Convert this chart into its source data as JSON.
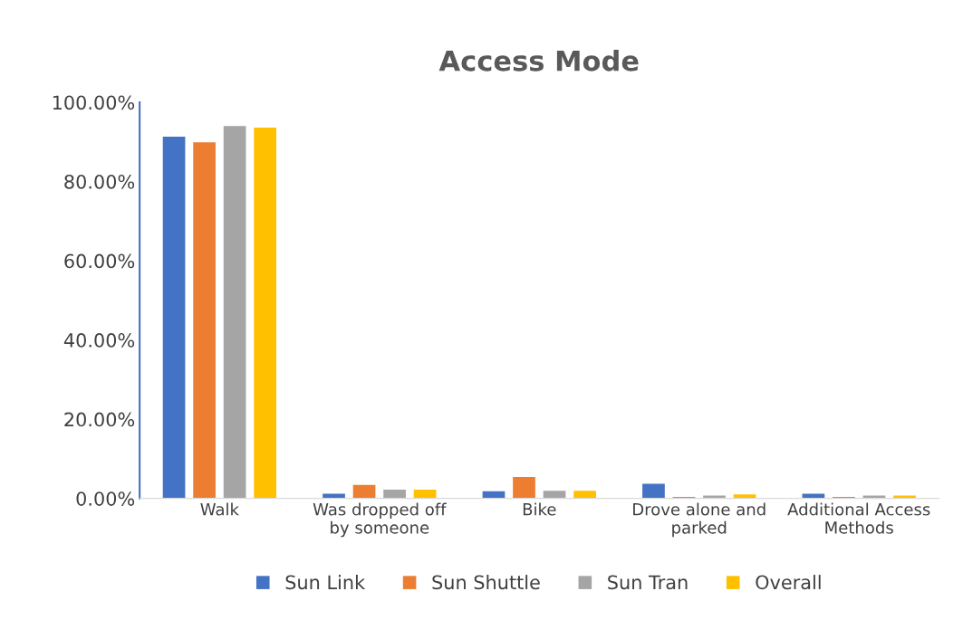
{
  "chart_data": {
    "type": "bar",
    "title": "Access Mode",
    "categories": [
      "Walk",
      "Was dropped off\nby someone",
      "Bike",
      "Drove alone and\nparked",
      "Additional Access\nMethods"
    ],
    "series": [
      {
        "name": "Sun Link",
        "color": "#4472c4",
        "values": [
          91.3,
          1.2,
          1.8,
          3.7,
          1.2
        ]
      },
      {
        "name": "Sun Shuttle",
        "color": "#ed7d31",
        "values": [
          89.9,
          3.4,
          5.4,
          0.4,
          0.4
        ]
      },
      {
        "name": "Sun Tran",
        "color": "#a5a5a5",
        "values": [
          94.0,
          2.2,
          1.9,
          0.7,
          0.7
        ]
      },
      {
        "name": "Overall",
        "color": "#ffc000",
        "values": [
          93.6,
          2.2,
          1.9,
          1.0,
          0.7
        ]
      }
    ],
    "ylim": [
      0,
      100
    ],
    "yticks": [
      {
        "value": 0,
        "label": "0.00%"
      },
      {
        "value": 20,
        "label": "20.00%"
      },
      {
        "value": 40,
        "label": "40.00%"
      },
      {
        "value": 60,
        "label": "60.00%"
      },
      {
        "value": 80,
        "label": "80.00%"
      },
      {
        "value": 100,
        "label": "100.00%"
      }
    ],
    "grid": false,
    "legend": "bottom"
  }
}
